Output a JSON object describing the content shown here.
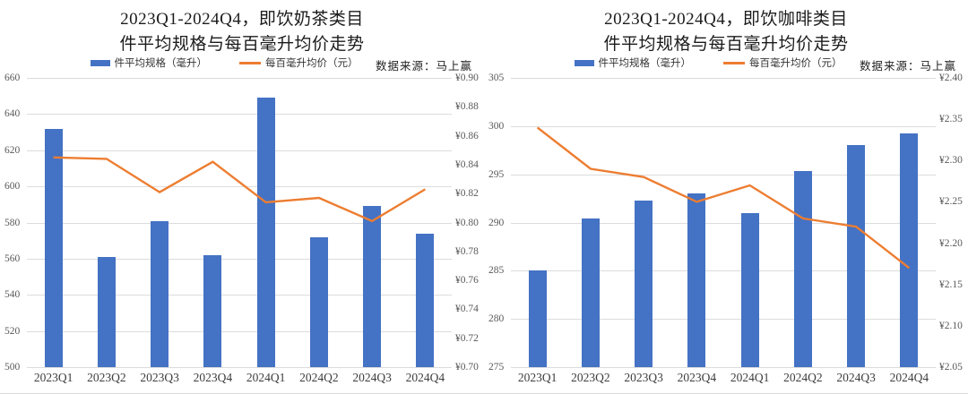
{
  "colors": {
    "bar": "#4472C4",
    "line": "#ED7D31",
    "gridline": "#DCDCDC",
    "background": "#FFFFFF"
  },
  "chart_data": [
    {
      "type": "bar+line",
      "title_line1": "2023Q1-2024Q4，即饮奶茶类目",
      "title_line2": "件平均规格与每百毫升均价走势",
      "source": "数据来源：马上赢",
      "categories": [
        "2023Q1",
        "2023Q2",
        "2023Q3",
        "2023Q4",
        "2024Q1",
        "2024Q2",
        "2024Q3",
        "2024Q4"
      ],
      "series": [
        {
          "name": "件平均规格（毫升）",
          "type": "bar",
          "axis": "left",
          "color": "#4472C4",
          "values": [
            632,
            561,
            581,
            562,
            649,
            572,
            589,
            574
          ]
        },
        {
          "name": "每百毫升均价（元）",
          "type": "line",
          "axis": "right",
          "color": "#ED7D31",
          "values": [
            0.845,
            0.844,
            0.821,
            0.842,
            0.814,
            0.817,
            0.801,
            0.823
          ]
        }
      ],
      "left_axis": {
        "min": 500,
        "max": 660,
        "step": 20,
        "decimals": 0,
        "prefix": ""
      },
      "right_axis": {
        "min": 0.7,
        "max": 0.9,
        "step": 0.02,
        "decimals": 2,
        "prefix": "¥"
      },
      "grid": "horizontal",
      "legend_position": "top"
    },
    {
      "type": "bar+line",
      "title_line1": "2023Q1-2024Q4，即饮咖啡类目",
      "title_line2": "件平均规格与每百毫升均价走势",
      "source": "数据来源：马上赢",
      "categories": [
        "2023Q1",
        "2023Q2",
        "2023Q3",
        "2023Q4",
        "2024Q1",
        "2024Q2",
        "2024Q3",
        "2024Q4"
      ],
      "series": [
        {
          "name": "件平均规格（毫升）",
          "type": "bar",
          "axis": "left",
          "color": "#4472C4",
          "values": [
            285,
            290.4,
            292.3,
            293,
            291,
            295.3,
            298,
            299.2
          ]
        },
        {
          "name": "每百毫升均价（元）",
          "type": "line",
          "axis": "right",
          "color": "#ED7D31",
          "values": [
            2.34,
            2.29,
            2.28,
            2.25,
            2.27,
            2.23,
            2.22,
            2.17
          ]
        }
      ],
      "left_axis": {
        "min": 275,
        "max": 305,
        "step": 5,
        "decimals": 0,
        "prefix": ""
      },
      "right_axis": {
        "min": 2.05,
        "max": 2.4,
        "step": 0.05,
        "decimals": 2,
        "prefix": "¥"
      },
      "grid": "horizontal",
      "legend_position": "top"
    }
  ]
}
